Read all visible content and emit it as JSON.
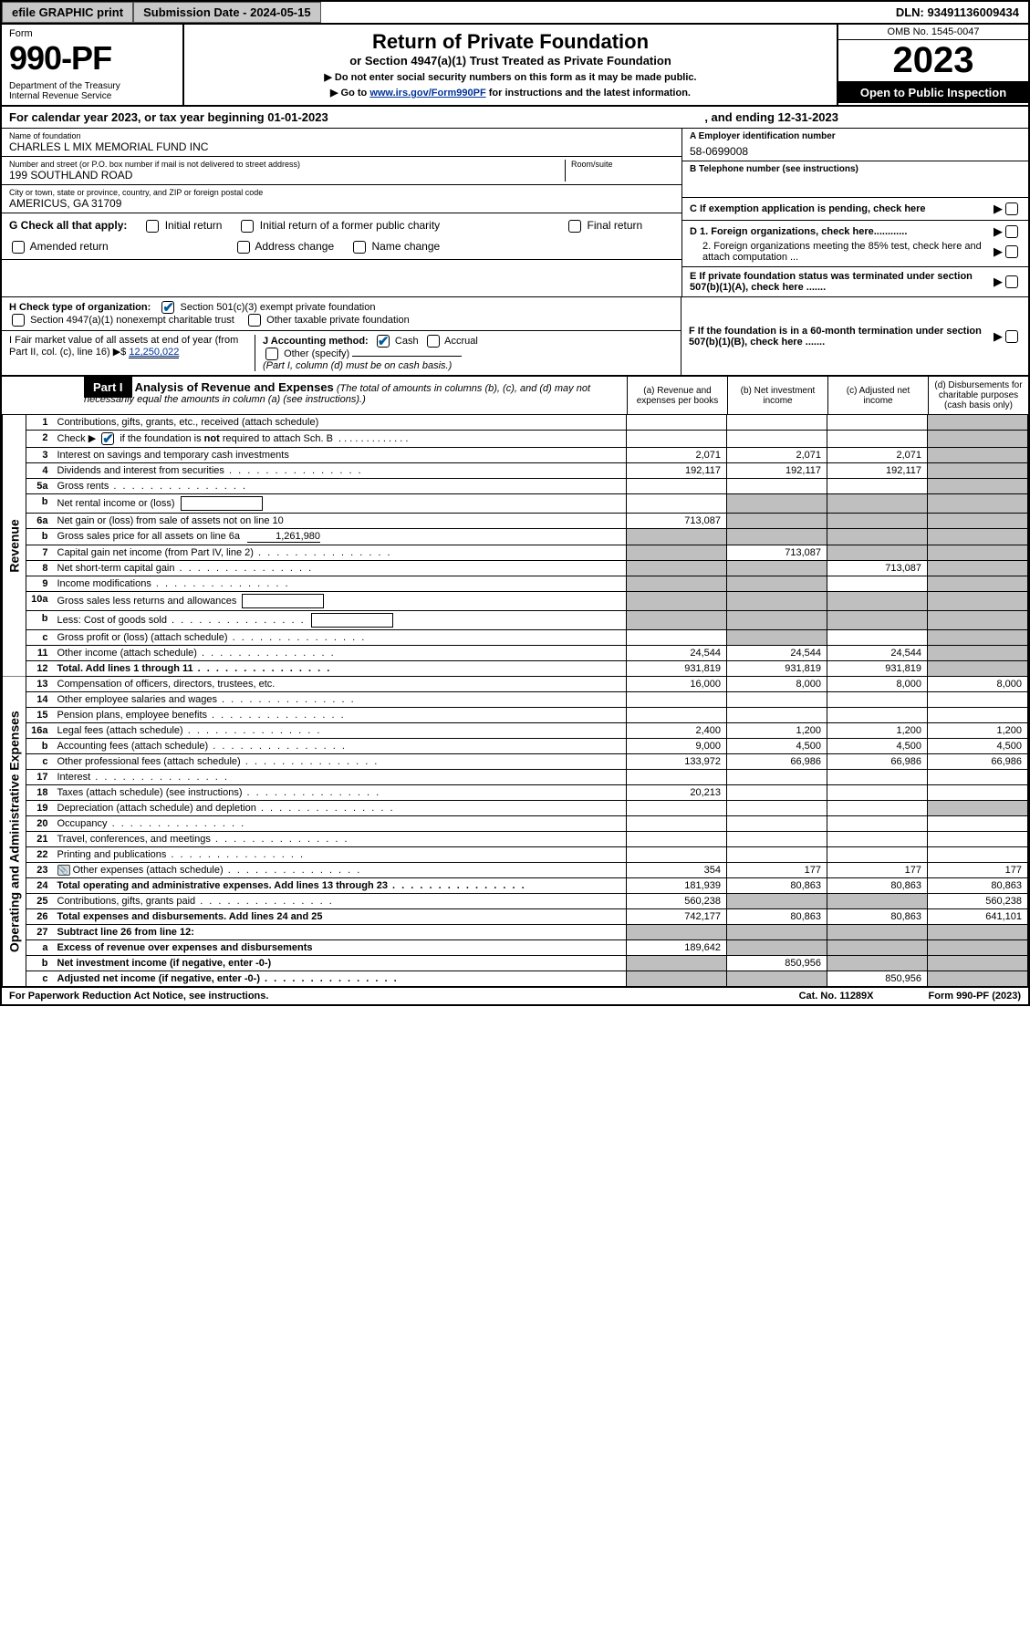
{
  "topbar": {
    "efile": "efile GRAPHIC print",
    "submission": "Submission Date - 2024-05-15",
    "dln": "DLN: 93491136009434"
  },
  "header": {
    "form_label": "Form",
    "form_num": "990-PF",
    "dept": "Department of the Treasury\nInternal Revenue Service",
    "title": "Return of Private Foundation",
    "subtitle": "or Section 4947(a)(1) Trust Treated as Private Foundation",
    "instr1": "▶ Do not enter social security numbers on this form as it may be made public.",
    "instr2_pre": "▶ Go to ",
    "instr2_link": "www.irs.gov/Form990PF",
    "instr2_post": " for instructions and the latest information.",
    "omb": "OMB No. 1545-0047",
    "year": "2023",
    "open": "Open to Public Inspection"
  },
  "cy": {
    "pre": "For calendar year 2023, or tax year beginning 01-01-2023",
    "post": ", and ending 12-31-2023"
  },
  "info": {
    "name_label": "Name of foundation",
    "name": "CHARLES L MIX MEMORIAL FUND INC",
    "addr_label": "Number and street (or P.O. box number if mail is not delivered to street address)",
    "addr": "199 SOUTHLAND ROAD",
    "room_label": "Room/suite",
    "city_label": "City or town, state or province, country, and ZIP or foreign postal code",
    "city": "AMERICUS, GA  31709",
    "a_label": "A Employer identification number",
    "a_val": "58-0699008",
    "b_label": "B Telephone number (see instructions)",
    "c_label": "C If exemption application is pending, check here",
    "d1": "D 1. Foreign organizations, check here............",
    "d2": "2. Foreign organizations meeting the 85% test, check here and attach computation ...",
    "e_label": "E  If private foundation status was terminated under section 507(b)(1)(A), check here .......",
    "f_label": "F  If the foundation is in a 60-month termination under section 507(b)(1)(B), check here ......."
  },
  "g": {
    "label": "G Check all that apply:",
    "opts": [
      "Initial return",
      "Initial return of a former public charity",
      "Final return",
      "Amended return",
      "Address change",
      "Name change"
    ]
  },
  "h": {
    "label": "H Check type of organization:",
    "o1": "Section 501(c)(3) exempt private foundation",
    "o2": "Section 4947(a)(1) nonexempt charitable trust",
    "o3": "Other taxable private foundation"
  },
  "i": {
    "label": "I Fair market value of all assets at end of year (from Part II, col. (c), line 16) ▶$",
    "val": "12,250,022"
  },
  "j": {
    "label": "J Accounting method:",
    "cash": "Cash",
    "accrual": "Accrual",
    "other": "Other (specify)",
    "note": "(Part I, column (d) must be on cash basis.)"
  },
  "part1": {
    "badge": "Part I",
    "title": "Analysis of Revenue and Expenses",
    "sub": "(The total of amounts in columns (b), (c), and (d) may not necessarily equal the amounts in column (a) (see instructions).)",
    "col_a": "(a) Revenue and expenses per books",
    "col_b": "(b) Net investment income",
    "col_c": "(c) Adjusted net income",
    "col_d": "(d) Disbursements for charitable purposes (cash basis only)"
  },
  "sides": {
    "revenue": "Revenue",
    "expenses": "Operating and Administrative Expenses"
  },
  "rows": [
    {
      "n": "1",
      "d": "Contributions, gifts, grants, etc., received (attach schedule)",
      "a": "",
      "b": "",
      "c": "",
      "dgrey": true
    },
    {
      "n": "2",
      "d_html": "Check ▶ [X] if the foundation is <b>not</b> required to attach Sch. B",
      "a": "",
      "b": "",
      "c": "",
      "dgrey": true,
      "check": true
    },
    {
      "n": "3",
      "d": "Interest on savings and temporary cash investments",
      "a": "2,071",
      "b": "2,071",
      "c": "2,071",
      "dgrey": true
    },
    {
      "n": "4",
      "d": "Dividends and interest from securities",
      "a": "192,117",
      "b": "192,117",
      "c": "192,117",
      "dgrey": true,
      "dots": true
    },
    {
      "n": "5a",
      "d": "Gross rents",
      "a": "",
      "b": "",
      "c": "",
      "dgrey": true,
      "dots": true
    },
    {
      "n": "b",
      "d": "Net rental income or (loss)",
      "a": "",
      "b": "",
      "c": "",
      "dgrey": true,
      "inlinebox": true,
      "allgrey_bcd": true
    },
    {
      "n": "6a",
      "d": "Net gain or (loss) from sale of assets not on line 10",
      "a": "713,087",
      "bgrey": true,
      "cgrey": true,
      "dgrey": true
    },
    {
      "n": "b",
      "d_html": "Gross sales price for all assets on line 6a",
      "inline_amt": "1,261,980",
      "agrey": true,
      "bgrey": true,
      "cgrey": true,
      "dgrey": true
    },
    {
      "n": "7",
      "d": "Capital gain net income (from Part IV, line 2)",
      "agrey": true,
      "b": "713,087",
      "cgrey": true,
      "dgrey": true,
      "dots": true
    },
    {
      "n": "8",
      "d": "Net short-term capital gain",
      "agrey": true,
      "bgrey": true,
      "c": "713,087",
      "dgrey": true,
      "dots": true
    },
    {
      "n": "9",
      "d": "Income modifications",
      "agrey": true,
      "bgrey": true,
      "c": "",
      "dgrey": true,
      "dots": true
    },
    {
      "n": "10a",
      "d": "Gross sales less returns and allowances",
      "inlinebox": true,
      "agrey": true,
      "bgrey": true,
      "cgrey": true,
      "dgrey": true
    },
    {
      "n": "b",
      "d": "Less: Cost of goods sold",
      "inlinebox": true,
      "agrey": true,
      "bgrey": true,
      "cgrey": true,
      "dgrey": true,
      "dots": true
    },
    {
      "n": "c",
      "d": "Gross profit or (loss) (attach schedule)",
      "a": "",
      "bgrey": true,
      "c": "",
      "dgrey": true,
      "dots": true
    },
    {
      "n": "11",
      "d": "Other income (attach schedule)",
      "a": "24,544",
      "b": "24,544",
      "c": "24,544",
      "dgrey": true,
      "dots": true
    },
    {
      "n": "12",
      "d": "Total. Add lines 1 through 11",
      "a": "931,819",
      "b": "931,819",
      "c": "931,819",
      "dgrey": true,
      "bold": true,
      "dots": true
    },
    {
      "n": "13",
      "d": "Compensation of officers, directors, trustees, etc.",
      "a": "16,000",
      "b": "8,000",
      "c": "8,000",
      "dd": "8,000"
    },
    {
      "n": "14",
      "d": "Other employee salaries and wages",
      "dots": true
    },
    {
      "n": "15",
      "d": "Pension plans, employee benefits",
      "dots": true
    },
    {
      "n": "16a",
      "d": "Legal fees (attach schedule)",
      "a": "2,400",
      "b": "1,200",
      "c": "1,200",
      "dd": "1,200",
      "dots": true
    },
    {
      "n": "b",
      "d": "Accounting fees (attach schedule)",
      "a": "9,000",
      "b": "4,500",
      "c": "4,500",
      "dd": "4,500",
      "dots": true
    },
    {
      "n": "c",
      "d": "Other professional fees (attach schedule)",
      "a": "133,972",
      "b": "66,986",
      "c": "66,986",
      "dd": "66,986",
      "dots": true
    },
    {
      "n": "17",
      "d": "Interest",
      "dots": true
    },
    {
      "n": "18",
      "d": "Taxes (attach schedule) (see instructions)",
      "a": "20,213",
      "dots": true
    },
    {
      "n": "19",
      "d": "Depreciation (attach schedule) and depletion",
      "dgrey": true,
      "dots": true
    },
    {
      "n": "20",
      "d": "Occupancy",
      "dots": true
    },
    {
      "n": "21",
      "d": "Travel, conferences, and meetings",
      "dots": true
    },
    {
      "n": "22",
      "d": "Printing and publications",
      "dots": true
    },
    {
      "n": "23",
      "d": "Other expenses (attach schedule)",
      "icon": true,
      "a": "354",
      "b": "177",
      "c": "177",
      "dd": "177",
      "dots": true
    },
    {
      "n": "24",
      "d": "Total operating and administrative expenses. Add lines 13 through 23",
      "a": "181,939",
      "b": "80,863",
      "c": "80,863",
      "dd": "80,863",
      "bold": true,
      "dots": true
    },
    {
      "n": "25",
      "d": "Contributions, gifts, grants paid",
      "a": "560,238",
      "bgrey": true,
      "cgrey": true,
      "dd": "560,238",
      "dots": true
    },
    {
      "n": "26",
      "d": "Total expenses and disbursements. Add lines 24 and 25",
      "a": "742,177",
      "b": "80,863",
      "c": "80,863",
      "dd": "641,101",
      "bold": true
    },
    {
      "n": "27",
      "d": "Subtract line 26 from line 12:",
      "agrey": true,
      "bgrey": true,
      "cgrey": true,
      "dgrey": true,
      "bold": true
    },
    {
      "n": "a",
      "d": "Excess of revenue over expenses and disbursements",
      "a": "189,642",
      "bgrey": true,
      "cgrey": true,
      "dgrey": true,
      "bold": true
    },
    {
      "n": "b",
      "d": "Net investment income (if negative, enter -0-)",
      "agrey": true,
      "b": "850,956",
      "cgrey": true,
      "dgrey": true,
      "bold": true
    },
    {
      "n": "c",
      "d": "Adjusted net income (if negative, enter -0-)",
      "agrey": true,
      "bgrey": true,
      "c": "850,956",
      "dgrey": true,
      "bold": true,
      "dots": true
    }
  ],
  "footer": {
    "left": "For Paperwork Reduction Act Notice, see instructions.",
    "cat": "Cat. No. 11289X",
    "form": "Form 990-PF (2023)"
  }
}
